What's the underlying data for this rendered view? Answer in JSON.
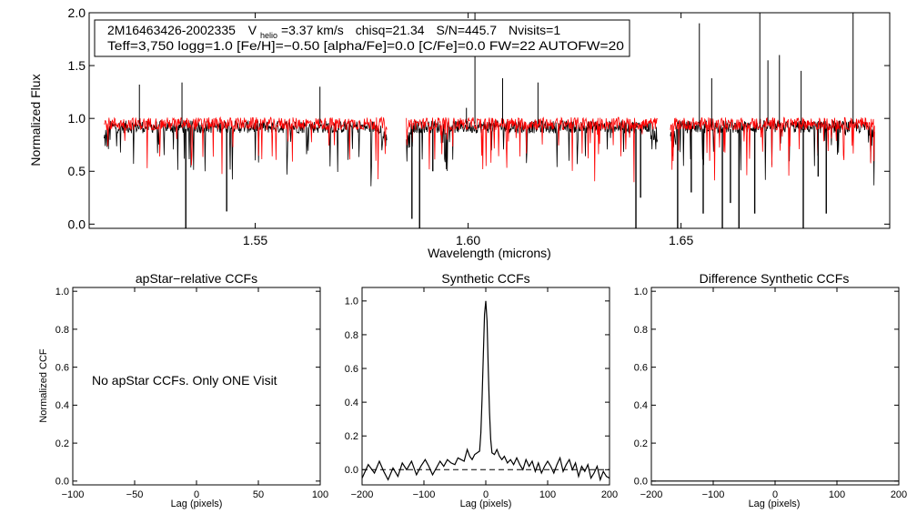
{
  "figure": {
    "star_id": "2M16463426-2002335",
    "vhelio_letter": "V",
    "vhelio_sub": "helio",
    "vhelio_value": "=3.37 km/s",
    "chisq": "chisq=21.34",
    "snr": "S/N=445.7",
    "nvisits": "Nvisits=1",
    "params_line": "Teff=3,750 logg=1.0 [Fe/H]=−0.50 [alpha/Fe]=0.0 [C/Fe]=0.0 FW=22 AUTOFW=20",
    "no_ccf_message": "No apStar CCFs.  Only ONE Visit"
  },
  "chart_data": [
    {
      "id": "spectrum",
      "type": "line",
      "title": "",
      "xlabel": "Wavelength (microns)",
      "ylabel": "Normalized Flux",
      "xlim": [
        1.511,
        1.699
      ],
      "ylim": [
        -0.04,
        2.0
      ],
      "xticks": [
        1.55,
        1.6,
        1.65
      ],
      "xtick_labels": [
        "1.55",
        "1.60",
        "1.65"
      ],
      "yticks": [
        0.0,
        0.5,
        1.0,
        1.5,
        2.0
      ],
      "ytick_labels": [
        "0.0",
        "0.5",
        "1.0",
        "1.5",
        "2.0"
      ],
      "segments": [
        [
          1.5145,
          1.581
        ],
        [
          1.5855,
          1.6445
        ],
        [
          1.6475,
          1.6955
        ]
      ],
      "series": [
        {
          "color": "#000000",
          "kind": "observed",
          "continuum": 0.92
        },
        {
          "color": "#ff0000",
          "kind": "model",
          "continuum": 0.95
        }
      ],
      "emission_spikes": [
        {
          "x": 1.5228,
          "y": 1.32
        },
        {
          "x": 1.5328,
          "y": 1.34
        },
        {
          "x": 1.5652,
          "y": 1.3
        },
        {
          "x": 1.6016,
          "y": 2.0
        },
        {
          "x": 1.5996,
          "y": 1.1
        },
        {
          "x": 1.6081,
          "y": 1.38
        },
        {
          "x": 1.6164,
          "y": 1.34
        },
        {
          "x": 1.6543,
          "y": 1.9
        },
        {
          "x": 1.6572,
          "y": 1.38
        },
        {
          "x": 1.6685,
          "y": 2.0
        },
        {
          "x": 1.6704,
          "y": 1.55
        },
        {
          "x": 1.6731,
          "y": 1.6
        },
        {
          "x": 1.6782,
          "y": 1.45
        },
        {
          "x": 1.6904,
          "y": 2.0
        }
      ],
      "telluric_drops": [
        {
          "x": 1.5337,
          "y": -0.04
        },
        {
          "x": 1.5433,
          "y": 0.12
        },
        {
          "x": 1.5868,
          "y": 0.05
        },
        {
          "x": 1.5886,
          "y": -0.04
        },
        {
          "x": 1.5917,
          "y": 0.5
        },
        {
          "x": 1.6394,
          "y": -0.04
        },
        {
          "x": 1.6405,
          "y": 0.25
        },
        {
          "x": 1.6492,
          "y": -0.04
        },
        {
          "x": 1.6524,
          "y": 0.3
        },
        {
          "x": 1.6552,
          "y": 0.1
        },
        {
          "x": 1.6597,
          "y": -0.04
        },
        {
          "x": 1.6616,
          "y": 0.2
        },
        {
          "x": 1.6636,
          "y": -0.04
        },
        {
          "x": 1.6673,
          "y": 0.1
        },
        {
          "x": 1.6787,
          "y": -0.04
        },
        {
          "x": 1.6822,
          "y": 0.45
        },
        {
          "x": 1.6841,
          "y": 0.1
        }
      ]
    },
    {
      "id": "apstar_ccf",
      "type": "line",
      "title": "apStar−relative CCFs",
      "xlabel": "Lag (pixels)",
      "ylabel": "Normalized CCF",
      "xlim": [
        -100,
        100
      ],
      "ylim": [
        -0.02,
        1.02
      ],
      "xticks": [
        -100,
        -50,
        0,
        50,
        100
      ],
      "xtick_labels": [
        "−100",
        "−50",
        "0",
        "50",
        "100"
      ],
      "yticks": [
        0.0,
        0.2,
        0.4,
        0.6,
        0.8,
        1.0
      ],
      "ytick_labels": [
        "0.0",
        "0.2",
        "0.4",
        "0.6",
        "0.8",
        "1.0"
      ],
      "series": []
    },
    {
      "id": "synthetic_ccf",
      "type": "line",
      "title": "Synthetic CCFs",
      "xlabel": "Lag (pixels)",
      "ylabel": "",
      "xlim": [
        -200,
        200
      ],
      "ylim": [
        -0.09,
        1.08
      ],
      "xticks": [
        -200,
        -100,
        0,
        100,
        200
      ],
      "xtick_labels": [
        "−200",
        "−100",
        "0",
        "100",
        "200"
      ],
      "yticks": [
        0.0,
        0.2,
        0.4,
        0.6,
        0.8,
        1.0
      ],
      "ytick_labels": [
        "0.0",
        "0.2",
        "0.4",
        "0.6",
        "0.8",
        "1.0"
      ],
      "baseline": 0.0,
      "series": [
        {
          "color": "#000000",
          "points": [
            [
              -200,
              -0.05
            ],
            [
              -190,
              0.03
            ],
            [
              -180,
              -0.02
            ],
            [
              -172,
              0.05
            ],
            [
              -165,
              -0.01
            ],
            [
              -158,
              -0.06
            ],
            [
              -150,
              0.01
            ],
            [
              -142,
              -0.04
            ],
            [
              -135,
              0.04
            ],
            [
              -128,
              0.0
            ],
            [
              -120,
              0.05
            ],
            [
              -112,
              -0.03
            ],
            [
              -105,
              0.02
            ],
            [
              -98,
              0.06
            ],
            [
              -92,
              0.02
            ],
            [
              -86,
              -0.03
            ],
            [
              -80,
              0.01
            ],
            [
              -74,
              0.05
            ],
            [
              -68,
              0.02
            ],
            [
              -62,
              0.06
            ],
            [
              -56,
              0.04
            ],
            [
              -50,
              0.03
            ],
            [
              -45,
              0.07
            ],
            [
              -40,
              0.06
            ],
            [
              -35,
              0.05
            ],
            [
              -30,
              0.12
            ],
            [
              -26,
              0.08
            ],
            [
              -22,
              0.06
            ],
            [
              -18,
              0.09
            ],
            [
              -14,
              0.1
            ],
            [
              -10,
              0.11
            ],
            [
              -8,
              0.22
            ],
            [
              -6,
              0.42
            ],
            [
              -4,
              0.68
            ],
            [
              -2,
              0.92
            ],
            [
              0,
              1.0
            ],
            [
              2,
              0.88
            ],
            [
              4,
              0.6
            ],
            [
              6,
              0.34
            ],
            [
              8,
              0.18
            ],
            [
              10,
              0.1
            ],
            [
              14,
              0.09
            ],
            [
              18,
              0.12
            ],
            [
              22,
              0.08
            ],
            [
              26,
              0.06
            ],
            [
              30,
              0.08
            ],
            [
              35,
              0.04
            ],
            [
              40,
              0.06
            ],
            [
              45,
              0.03
            ],
            [
              50,
              0.07
            ],
            [
              55,
              0.03
            ],
            [
              60,
              0.0
            ],
            [
              65,
              0.06
            ],
            [
              70,
              0.02
            ],
            [
              75,
              0.05
            ],
            [
              80,
              -0.01
            ],
            [
              85,
              0.04
            ],
            [
              90,
              -0.02
            ],
            [
              95,
              0.02
            ],
            [
              100,
              0.05
            ],
            [
              105,
              0.02
            ],
            [
              110,
              -0.02
            ],
            [
              115,
              0.03
            ],
            [
              120,
              0.07
            ],
            [
              125,
              -0.01
            ],
            [
              130,
              0.03
            ],
            [
              135,
              0.06
            ],
            [
              140,
              0.0
            ],
            [
              145,
              0.04
            ],
            [
              150,
              -0.04
            ],
            [
              155,
              0.02
            ],
            [
              160,
              -0.01
            ],
            [
              165,
              0.03
            ],
            [
              170,
              -0.05
            ],
            [
              175,
              -0.02
            ],
            [
              180,
              0.02
            ],
            [
              185,
              -0.06
            ],
            [
              190,
              -0.01
            ],
            [
              195,
              -0.04
            ],
            [
              200,
              -0.05
            ]
          ]
        }
      ]
    },
    {
      "id": "difference_ccf",
      "type": "line",
      "title": "Difference Synthetic CCFs",
      "xlabel": "Lag (pixels)",
      "ylabel": "",
      "xlim": [
        -200,
        200
      ],
      "ylim": [
        -0.02,
        1.02
      ],
      "xticks": [
        -200,
        -100,
        0,
        100,
        200
      ],
      "xtick_labels": [
        "−200",
        "−100",
        "0",
        "100",
        "200"
      ],
      "yticks": [
        0.0,
        0.2,
        0.4,
        0.6,
        0.8,
        1.0
      ],
      "ytick_labels": [
        "0.0",
        "0.2",
        "0.4",
        "0.6",
        "0.8",
        "1.0"
      ],
      "series": [
        {
          "color": "#000000",
          "points": [
            [
              -200,
              0.0
            ],
            [
              200,
              0.0
            ]
          ]
        }
      ]
    }
  ]
}
